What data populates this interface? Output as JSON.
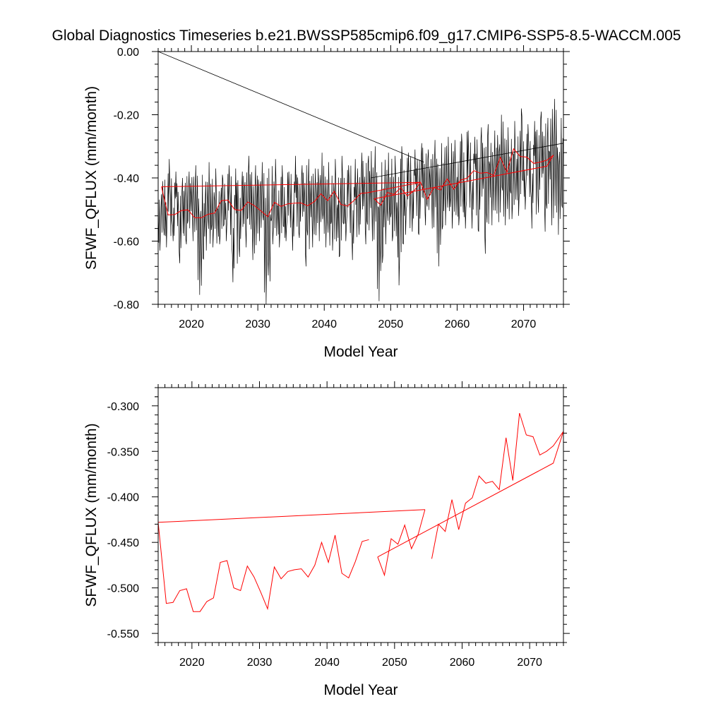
{
  "title": "Global Diagnostics Timeseries b.e21.BWSSP585cmip6.f09_g17.CMIP6-SSP5-8.5-WACCM.005",
  "colors": {
    "monthly": "#000000",
    "annual": "#ff0000",
    "axes": "#000000"
  },
  "chart_data": [
    {
      "type": "line",
      "panel": "top",
      "xlabel": "Model Year",
      "ylabel": "SFWF_QFLUX (mm/month)",
      "xlim": [
        2015,
        2076
      ],
      "ylim": [
        -0.8,
        0.0
      ],
      "x_ticks": [
        2020,
        2030,
        2040,
        2050,
        2060,
        2070
      ],
      "x_tick_labels": [
        "2020",
        "2030",
        "2040",
        "2050",
        "2060",
        "2070"
      ],
      "y_ticks": [
        0.0,
        -0.2,
        -0.4,
        -0.6,
        -0.8
      ],
      "y_tick_labels": [
        "0.00",
        "-0.20",
        "-0.40",
        "-0.60",
        "-0.80"
      ],
      "series": [
        {
          "name": "monthly",
          "color": "#000000",
          "note": "dense seasonal monthly values; envelope bounds per year (min, max)",
          "years": [
            2015,
            2016,
            2017,
            2018,
            2019,
            2020,
            2021,
            2022,
            2023,
            2024,
            2025,
            2026,
            2027,
            2028,
            2029,
            2030,
            2031,
            2032,
            2033,
            2034,
            2035,
            2036,
            2037,
            2038,
            2039,
            2040,
            2041,
            2042,
            2043,
            2044,
            2045,
            2046,
            2047,
            2048,
            2049,
            2050,
            2051,
            2052,
            2053,
            2054,
            2055,
            2056,
            2057,
            2058,
            2059,
            2060,
            2061,
            2062,
            2063,
            2064,
            2065,
            2066,
            2067,
            2068,
            2069,
            2070,
            2071,
            2072,
            2073,
            2074,
            2075
          ],
          "min": [
            -0.63,
            -0.62,
            -0.6,
            -0.67,
            -0.61,
            -0.6,
            -0.77,
            -0.63,
            -0.62,
            -0.61,
            -0.6,
            -0.73,
            -0.65,
            -0.62,
            -0.66,
            -0.6,
            -0.8,
            -0.61,
            -0.62,
            -0.6,
            -0.63,
            -0.59,
            -0.68,
            -0.62,
            -0.6,
            -0.62,
            -0.63,
            -0.65,
            -0.6,
            -0.66,
            -0.58,
            -0.61,
            -0.6,
            -0.79,
            -0.61,
            -0.6,
            -0.74,
            -0.58,
            -0.57,
            -0.58,
            -0.55,
            -0.56,
            -0.68,
            -0.55,
            -0.56,
            -0.55,
            -0.56,
            -0.56,
            -0.57,
            -0.64,
            -0.55,
            -0.54,
            -0.55,
            -0.53,
            -0.52,
            -0.5,
            -0.56,
            -0.51,
            -0.57,
            -0.55,
            -0.58
          ],
          "max": [
            -0.41,
            -0.34,
            -0.38,
            -0.4,
            -0.38,
            -0.36,
            -0.39,
            -0.35,
            -0.37,
            -0.39,
            -0.36,
            -0.37,
            -0.38,
            -0.33,
            -0.36,
            -0.35,
            -0.37,
            -0.34,
            -0.36,
            -0.38,
            -0.33,
            -0.36,
            -0.34,
            -0.37,
            -0.32,
            -0.35,
            -0.34,
            -0.33,
            -0.36,
            -0.34,
            -0.32,
            -0.33,
            -0.3,
            -0.35,
            -0.32,
            -0.33,
            -0.3,
            -0.32,
            -0.31,
            -0.29,
            -0.31,
            -0.28,
            -0.29,
            -0.27,
            -0.28,
            -0.26,
            -0.25,
            -0.27,
            -0.24,
            -0.23,
            -0.25,
            -0.2,
            -0.24,
            -0.22,
            -0.18,
            -0.23,
            -0.22,
            -0.19,
            -0.21,
            -0.15,
            -0.21
          ]
        },
        {
          "name": "monthly-wrap-segment",
          "color": "#000000",
          "x": [
            2015.0,
            2055.0
          ],
          "y": [
            0.0,
            -0.35
          ]
        },
        {
          "name": "monthly-trend",
          "color": "#000000",
          "x": [
            2047.0,
            2076.0
          ],
          "y": [
            -0.4,
            -0.29
          ]
        },
        {
          "name": "annual-mean",
          "color": "#ff0000",
          "x": [
            2015.5,
            2015.5,
            2016.5,
            2017.5,
            2018.5,
            2019.5,
            2020.5,
            2021.5,
            2022.5,
            2023.5,
            2024.5,
            2025.5,
            2026.5,
            2027.5,
            2028.5,
            2029.5,
            2030.5,
            2031.5,
            2032.5,
            2033.5,
            2034.5,
            2035.5,
            2036.5,
            2037.5,
            2038.5,
            2039.5,
            2040.5,
            2041.5,
            2042.5,
            2043.5,
            2044.5,
            2045.5,
            2046.5,
            2054.5,
            2015.5,
            null,
            2047.5,
            2048.5,
            2049.5,
            2050.5,
            2051.5,
            2052.5,
            2053.5,
            2054.5,
            2055.5,
            2056.5,
            2057.5,
            2058.5,
            2059.5,
            2060.5,
            2061.5,
            2062.5,
            2063.5,
            2064.5,
            2065.5,
            2066.5,
            2067.5,
            2068.5,
            2069.5,
            2070.5,
            2071.5,
            2072.5,
            2073.5,
            2074.5,
            2073.5,
            2047.5
          ],
          "y": [
            -0.428,
            -0.428,
            -0.517,
            -0.516,
            -0.503,
            -0.501,
            -0.526,
            -0.526,
            -0.515,
            -0.511,
            -0.472,
            -0.47,
            -0.5,
            -0.503,
            -0.476,
            -0.488,
            -0.505,
            -0.523,
            -0.477,
            -0.49,
            -0.482,
            -0.48,
            -0.479,
            -0.488,
            -0.475,
            -0.45,
            -0.472,
            -0.442,
            -0.484,
            -0.489,
            -0.471,
            -0.449,
            -0.447,
            -0.414,
            -0.428,
            null,
            -0.466,
            -0.486,
            -0.446,
            -0.452,
            -0.431,
            -0.457,
            -0.441,
            -0.414,
            -0.468,
            -0.43,
            -0.438,
            -0.403,
            -0.436,
            -0.407,
            -0.401,
            -0.377,
            -0.385,
            -0.383,
            -0.392,
            -0.335,
            -0.382,
            -0.308,
            -0.332,
            -0.334,
            -0.354,
            -0.35,
            -0.344,
            -0.328,
            -0.363,
            -0.466
          ]
        }
      ]
    },
    {
      "type": "line",
      "panel": "bottom",
      "xlabel": "Model Year",
      "ylabel": "SFWF_QFLUX (mm/month)",
      "xlim": [
        2015,
        2075
      ],
      "ylim": [
        -0.56,
        -0.28
      ],
      "x_ticks": [
        2020,
        2030,
        2040,
        2050,
        2060,
        2070
      ],
      "x_tick_labels": [
        "2020",
        "2030",
        "2040",
        "2050",
        "2060",
        "2070"
      ],
      "y_ticks": [
        -0.3,
        -0.35,
        -0.4,
        -0.45,
        -0.5,
        -0.55
      ],
      "y_tick_labels": [
        "-0.300",
        "-0.350",
        "-0.400",
        "-0.450",
        "-0.500",
        "-0.550"
      ],
      "series": [
        {
          "name": "annual-mean",
          "color": "#ff0000",
          "x": [
            2015.0,
            2016.2,
            2017.2,
            2018.2,
            2019.2,
            2020.2,
            2021.2,
            2022.2,
            2023.2,
            2024.2,
            2025.2,
            2026.2,
            2027.2,
            2028.2,
            2029.2,
            2030.2,
            2031.2,
            2032.2,
            2033.2,
            2034.2,
            2035.2,
            2036.2,
            2037.2,
            2038.2,
            2039.2,
            2040.2,
            2041.2,
            2042.2,
            2043.2,
            2044.2,
            2045.2,
            2046.2,
            null,
            2054.5,
            2015.0,
            null,
            2047.5,
            2048.5,
            2049.5,
            2050.5,
            2051.5,
            2052.5,
            2053.5,
            2054.5,
            null,
            2055.5,
            2056.5,
            2057.5,
            2058.5,
            2059.5,
            2060.5,
            2061.5,
            2062.5,
            2063.5,
            2064.5,
            2065.5,
            2066.5,
            2067.5,
            2068.5,
            2069.5,
            2070.5,
            2071.5,
            2072.5,
            2073.5,
            2075.0,
            2073.5,
            2047.5
          ],
          "y": [
            -0.428,
            -0.517,
            -0.516,
            -0.503,
            -0.501,
            -0.526,
            -0.526,
            -0.515,
            -0.511,
            -0.472,
            -0.47,
            -0.5,
            -0.503,
            -0.476,
            -0.488,
            -0.505,
            -0.523,
            -0.477,
            -0.49,
            -0.482,
            -0.48,
            -0.479,
            -0.488,
            -0.475,
            -0.45,
            -0.472,
            -0.442,
            -0.484,
            -0.489,
            -0.471,
            -0.449,
            -0.447,
            null,
            -0.414,
            -0.428,
            null,
            -0.466,
            -0.486,
            -0.446,
            -0.452,
            -0.431,
            -0.457,
            -0.441,
            -0.414,
            null,
            -0.468,
            -0.43,
            -0.438,
            -0.403,
            -0.436,
            -0.407,
            -0.401,
            -0.377,
            -0.385,
            -0.383,
            -0.392,
            -0.335,
            -0.382,
            -0.308,
            -0.332,
            -0.334,
            -0.354,
            -0.35,
            -0.344,
            -0.328,
            -0.363,
            -0.466
          ]
        }
      ]
    }
  ]
}
